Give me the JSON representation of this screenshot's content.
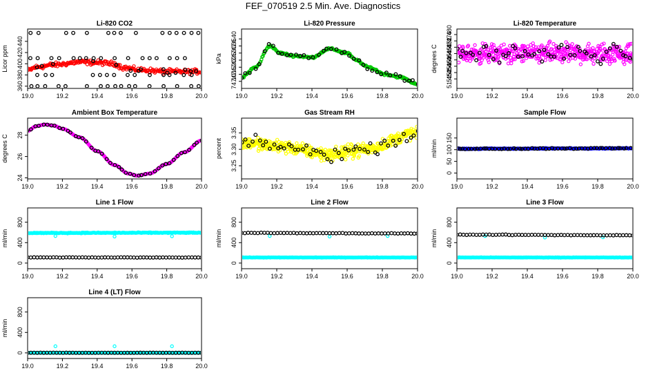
{
  "page": {
    "title": "FEF_070519  2.5 Min. Ave. Diagnostics"
  },
  "colors": {
    "red": "#ff0000",
    "green": "#00c800",
    "magenta": "#ff00ff",
    "yellow": "#ffff00",
    "blue": "#0000ff",
    "cyan": "#00ffff",
    "black": "#000000"
  },
  "chart_data": [
    {
      "type": "scatter",
      "title": "Li-820 CO2",
      "ylabel": "Licor ppm",
      "xlim": [
        19.0,
        20.0
      ],
      "ylim": [
        356,
        462
      ],
      "xticks": [
        "19.0",
        "19.2",
        "19.4",
        "19.6",
        "19.8",
        "20.0"
      ],
      "yticks": [
        360,
        380,
        400,
        420,
        440
      ],
      "series": [
        {
          "name": "primary",
          "color": "red",
          "shape": "band",
          "noise": 6,
          "points": [
            [
              19.0,
              388
            ],
            [
              19.05,
              394
            ],
            [
              19.15,
              398
            ],
            [
              19.3,
              403
            ],
            [
              19.4,
              402
            ],
            [
              19.5,
              400
            ],
            [
              19.55,
              393
            ],
            [
              19.65,
              389
            ],
            [
              19.8,
              386
            ],
            [
              20.0,
              386
            ]
          ]
        },
        {
          "name": "samples",
          "color": "black",
          "shape": "scatter",
          "ys": [
            360,
            380,
            410,
            455
          ],
          "step": 0.04
        }
      ]
    },
    {
      "type": "scatter",
      "title": "Li-820 Pressure",
      "ylabel": "kPa",
      "xlim": [
        19.0,
        20.0
      ],
      "ylim": [
        74.05,
        74.47
      ],
      "xticks": [
        "19.0",
        "19.2",
        "19.4",
        "19.6",
        "19.8",
        "20.0"
      ],
      "yticks": [
        "74.10",
        "74.15",
        "74.20",
        "74.25",
        "74.30",
        "74.35",
        "74.40"
      ],
      "series": [
        {
          "name": "primary",
          "color": "green",
          "shape": "band",
          "noise": 0.01,
          "points": [
            [
              19.0,
              74.13
            ],
            [
              19.08,
              74.2
            ],
            [
              19.16,
              74.35
            ],
            [
              19.22,
              74.3
            ],
            [
              19.3,
              74.28
            ],
            [
              19.4,
              74.27
            ],
            [
              19.5,
              74.33
            ],
            [
              19.6,
              74.3
            ],
            [
              19.65,
              74.25
            ],
            [
              19.72,
              74.2
            ],
            [
              19.82,
              74.15
            ],
            [
              19.9,
              74.13
            ],
            [
              20.0,
              74.08
            ]
          ]
        },
        {
          "name": "samples",
          "color": "black",
          "shape": "follow",
          "count": 40,
          "noise": 0.03
        }
      ]
    },
    {
      "type": "scatter",
      "title": "Li-820 Temperature",
      "ylabel": "degrees C",
      "xlim": [
        19.0,
        20.0
      ],
      "ylim": [
        51.446,
        51.4835
      ],
      "xticks": [
        "19.0",
        "19.2",
        "19.4",
        "19.6",
        "19.8",
        "20.0"
      ],
      "yticks": [
        "51.452",
        "51.456",
        "51.460",
        "51.464",
        "51.468",
        "51.472",
        "51.476",
        "51.480"
      ],
      "series": [
        {
          "name": "primary",
          "color": "magenta",
          "shape": "band",
          "noise": 0.009,
          "mult": 2,
          "points": [
            [
              19.0,
              51.468
            ],
            [
              20.0,
              51.468
            ]
          ]
        },
        {
          "name": "samples",
          "color": "black",
          "shape": "follow",
          "count": 55,
          "noise": 0.009
        }
      ]
    },
    {
      "type": "line",
      "title": "Ambient Box Temperature",
      "ylabel": "degrees C",
      "xlim": [
        19.0,
        20.0
      ],
      "ylim": [
        23.9,
        29.6
      ],
      "xticks": [
        "19.0",
        "19.2",
        "19.4",
        "19.6",
        "19.8",
        "20.0"
      ],
      "yticks": [
        24,
        26,
        28
      ],
      "series": [
        {
          "name": "primary",
          "color": "magenta",
          "shape": "smooth",
          "noise": 0,
          "points": [
            [
              19.0,
              28.4
            ],
            [
              19.05,
              28.85
            ],
            [
              19.1,
              29.0
            ],
            [
              19.15,
              28.9
            ],
            [
              19.2,
              28.6
            ],
            [
              19.3,
              27.8
            ],
            [
              19.4,
              26.5
            ],
            [
              19.5,
              25.2
            ],
            [
              19.58,
              24.4
            ],
            [
              19.63,
              24.2
            ],
            [
              19.7,
              24.4
            ],
            [
              19.8,
              25.3
            ],
            [
              19.9,
              26.4
            ],
            [
              20.0,
              27.5
            ]
          ]
        },
        {
          "name": "samples",
          "color": "black",
          "shape": "follow",
          "count": 45,
          "noise": 0
        }
      ]
    },
    {
      "type": "scatter",
      "title": "Gas Stream RH",
      "ylabel": "percent",
      "xlim": [
        19.0,
        20.0
      ],
      "ylim": [
        3.21,
        3.395
      ],
      "xticks": [
        "19.0",
        "19.2",
        "19.4",
        "19.6",
        "19.8",
        "20.0"
      ],
      "yticks": [
        "3.25",
        "3.30",
        "3.35"
      ],
      "series": [
        {
          "name": "primary",
          "color": "yellow",
          "shape": "band",
          "noise": 0.028,
          "mult": 2,
          "points": [
            [
              19.0,
              3.32
            ],
            [
              19.2,
              3.31
            ],
            [
              19.5,
              3.285
            ],
            [
              19.7,
              3.3
            ],
            [
              20.0,
              3.35
            ]
          ]
        },
        {
          "name": "samples",
          "color": "black",
          "shape": "follow",
          "count": 50,
          "noise": 0.03
        }
      ]
    },
    {
      "type": "scatter",
      "title": "Sample Flow",
      "ylabel": "ml/min",
      "xlim": [
        19.0,
        20.0
      ],
      "ylim": [
        -25,
        235
      ],
      "xticks": [
        "19.0",
        "19.2",
        "19.4",
        "19.6",
        "19.8",
        "20.0"
      ],
      "yticks": [
        0,
        50,
        100,
        150
      ],
      "series": [
        {
          "name": "primary",
          "color": "blue",
          "shape": "band",
          "noise": 3,
          "points": [
            [
              19.0,
              104
            ],
            [
              20.0,
              106
            ]
          ]
        },
        {
          "name": "samples",
          "color": "black",
          "shape": "follow",
          "count": 60,
          "noise": 3
        }
      ]
    },
    {
      "type": "scatter",
      "title": "Line 1 Flow",
      "ylabel": "ml/min",
      "xlim": [
        19.0,
        20.0
      ],
      "ylim": [
        -110,
        1080
      ],
      "xticks": [
        "19.0",
        "19.2",
        "19.4",
        "19.6",
        "19.8",
        "20.0"
      ],
      "yticks": [
        0,
        400,
        800
      ],
      "series": [
        {
          "name": "primary",
          "color": "cyan",
          "shape": "band",
          "noise": 12,
          "points": [
            [
              19.0,
              590
            ],
            [
              20.0,
              595
            ]
          ],
          "outliers": [
            [
              19.16,
              530
            ],
            [
              19.5,
              520
            ],
            [
              19.83,
              525
            ]
          ]
        },
        {
          "name": "samples",
          "color": "black",
          "shape": "line",
          "noise": 5,
          "points": [
            [
              19.0,
              110
            ],
            [
              20.0,
              110
            ]
          ],
          "count": 55
        }
      ]
    },
    {
      "type": "scatter",
      "title": "Line 2 Flow",
      "ylabel": "ml/min",
      "xlim": [
        19.0,
        20.0
      ],
      "ylim": [
        -110,
        1080
      ],
      "xticks": [
        "19.0",
        "19.2",
        "19.4",
        "19.6",
        "19.8",
        "20.0"
      ],
      "yticks": [
        0,
        400,
        800
      ],
      "series": [
        {
          "name": "primary",
          "color": "cyan",
          "shape": "band",
          "noise": 6,
          "points": [
            [
              19.0,
              110
            ],
            [
              20.0,
              110
            ]
          ],
          "outliers": [
            [
              19.16,
              530
            ],
            [
              19.5,
              520
            ],
            [
              19.83,
              530
            ]
          ]
        },
        {
          "name": "samples",
          "color": "black",
          "shape": "line",
          "noise": 8,
          "points": [
            [
              19.0,
              590
            ],
            [
              20.0,
              580
            ]
          ],
          "count": 55
        }
      ]
    },
    {
      "type": "scatter",
      "title": "Line 3 Flow",
      "ylabel": "ml/min",
      "xlim": [
        19.0,
        20.0
      ],
      "ylim": [
        -110,
        1080
      ],
      "xticks": [
        "19.0",
        "19.2",
        "19.4",
        "19.6",
        "19.8",
        "20.0"
      ],
      "yticks": [
        0,
        400,
        800
      ],
      "series": [
        {
          "name": "primary",
          "color": "cyan",
          "shape": "band",
          "noise": 6,
          "points": [
            [
              19.0,
              110
            ],
            [
              20.0,
              110
            ]
          ],
          "outliers": [
            [
              19.16,
              530
            ],
            [
              19.5,
              500
            ],
            [
              19.83,
              505
            ]
          ]
        },
        {
          "name": "samples",
          "color": "black",
          "shape": "line",
          "noise": 8,
          "points": [
            [
              19.0,
              555
            ],
            [
              20.0,
              545
            ]
          ],
          "count": 55
        }
      ]
    },
    {
      "type": "scatter",
      "title": "Line 4 (LT) Flow",
      "ylabel": "ml/min",
      "xlim": [
        19.0,
        20.0
      ],
      "ylim": [
        -110,
        1080
      ],
      "xticks": [
        "19.0",
        "19.2",
        "19.4",
        "19.6",
        "19.8",
        "20.0"
      ],
      "yticks": [
        0,
        400,
        800
      ],
      "series": [
        {
          "name": "primary",
          "color": "cyan",
          "shape": "band",
          "noise": 4,
          "points": [
            [
              19.0,
              2
            ],
            [
              20.0,
              2
            ]
          ],
          "outliers": [
            [
              19.16,
              130
            ],
            [
              19.5,
              130
            ],
            [
              19.83,
              130
            ]
          ]
        },
        {
          "name": "samples",
          "color": "black",
          "shape": "line",
          "noise": 3,
          "points": [
            [
              19.0,
              2
            ],
            [
              20.0,
              2
            ]
          ],
          "count": 55
        }
      ]
    }
  ]
}
